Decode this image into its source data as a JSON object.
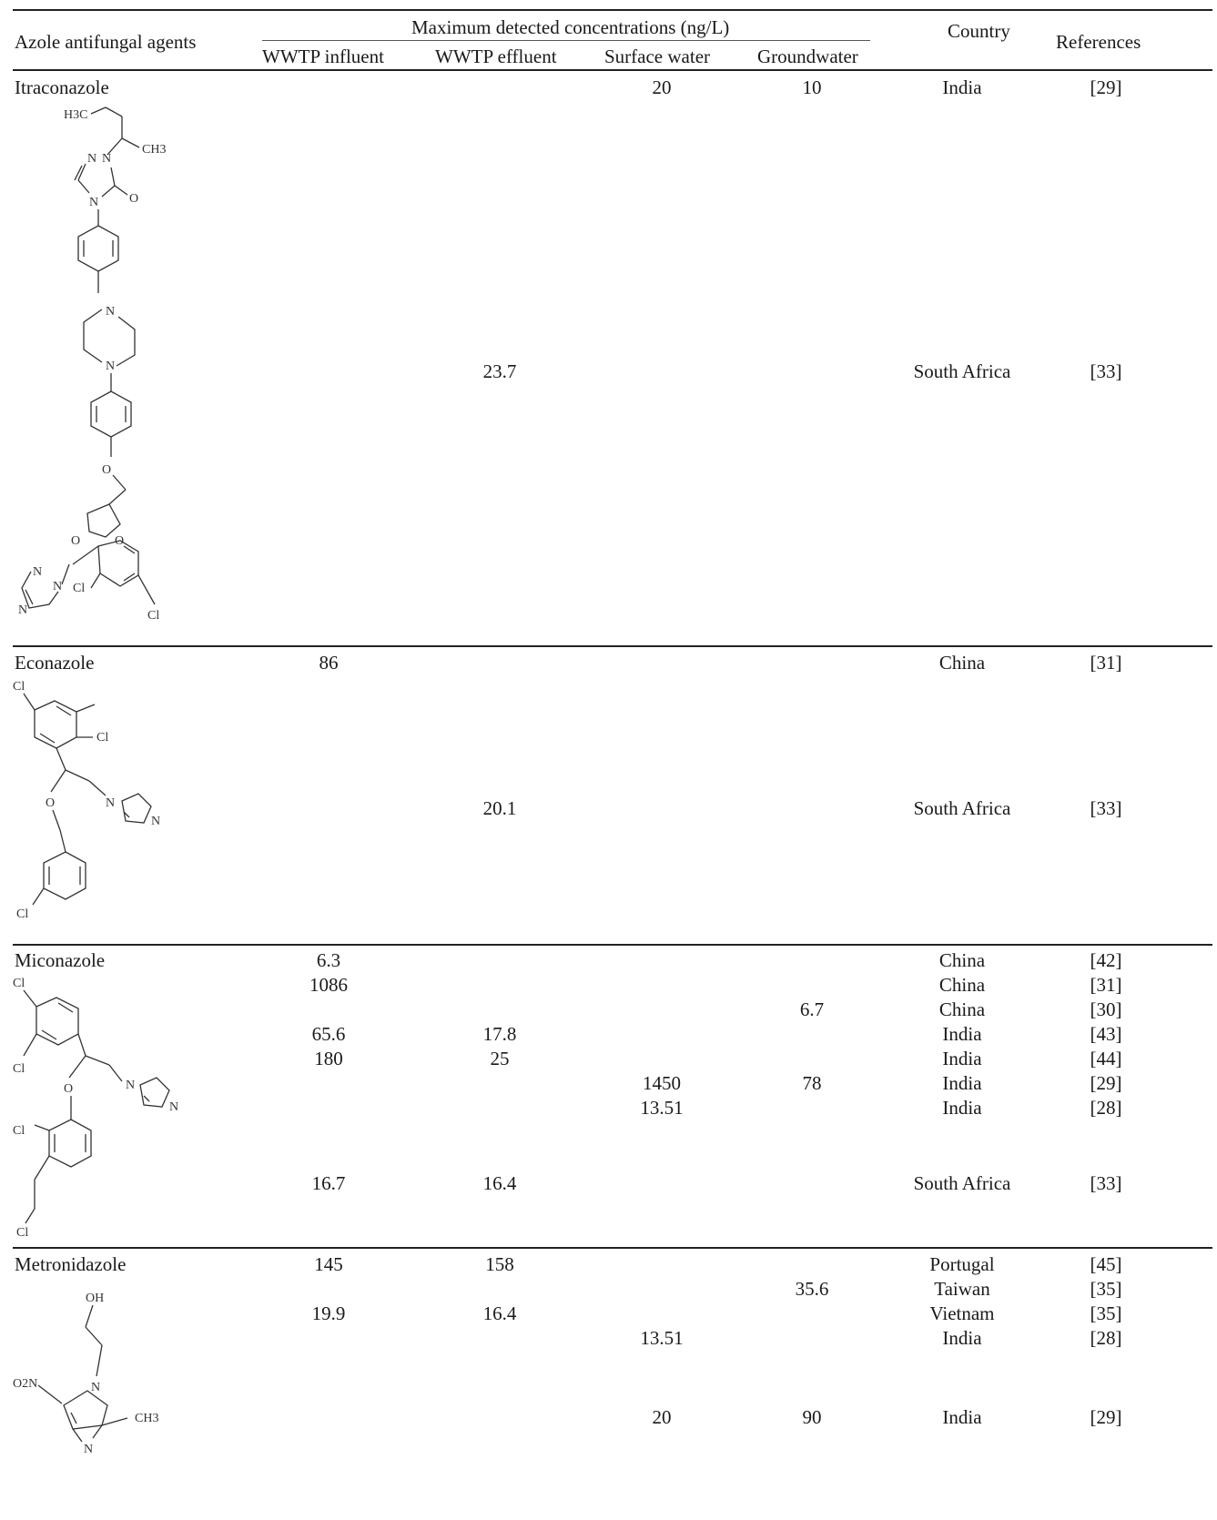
{
  "header": {
    "agent_col": "Azole antifungal agents",
    "group": "Maximum detected concentrations (ng/L)",
    "cols": [
      "WWTP influent",
      "WWTP effluent",
      "Surface water",
      "Groundwater"
    ],
    "country": "Country",
    "references": "References"
  },
  "agents": [
    {
      "name": "Itraconazole",
      "rows": [
        {
          "influent": "",
          "effluent": "",
          "surface": "20",
          "ground": "10",
          "country": "India",
          "ref": "[29]"
        },
        {
          "influent": "",
          "effluent": "23.7",
          "surface": "",
          "ground": "",
          "country": "South Africa",
          "ref": "[33]"
        }
      ]
    },
    {
      "name": "Econazole",
      "rows": [
        {
          "influent": "86",
          "effluent": "",
          "surface": "",
          "ground": "",
          "country": "China",
          "ref": "[31]"
        },
        {
          "influent": "",
          "effluent": "20.1",
          "surface": "",
          "ground": "",
          "country": "South Africa",
          "ref": "[33]"
        }
      ]
    },
    {
      "name": "Miconazole",
      "rows": [
        {
          "influent": "6.3",
          "effluent": "",
          "surface": "",
          "ground": "",
          "country": "China",
          "ref": "[42]"
        },
        {
          "influent": "1086",
          "effluent": "",
          "surface": "",
          "ground": "",
          "country": "China",
          "ref": "[31]"
        },
        {
          "influent": "",
          "effluent": "",
          "surface": "",
          "ground": "6.7",
          "country": "China",
          "ref": "[30]"
        },
        {
          "influent": "65.6",
          "effluent": "17.8",
          "surface": "",
          "ground": "",
          "country": "India",
          "ref": "[43]"
        },
        {
          "influent": "180",
          "effluent": "25",
          "surface": "",
          "ground": "",
          "country": "India",
          "ref": "[44]"
        },
        {
          "influent": "",
          "effluent": "",
          "surface": "1450",
          "ground": "78",
          "country": "India",
          "ref": "[29]"
        },
        {
          "influent": "",
          "effluent": "",
          "surface": "13.51",
          "ground": "",
          "country": "India",
          "ref": "[28]"
        },
        {
          "influent": "16.7",
          "effluent": "16.4",
          "surface": "",
          "ground": "",
          "country": "South Africa",
          "ref": "[33]"
        }
      ]
    },
    {
      "name": "Metronidazole",
      "rows": [
        {
          "influent": "145",
          "effluent": "158",
          "surface": "",
          "ground": "",
          "country": "Portugal",
          "ref": "[45]"
        },
        {
          "influent": "",
          "effluent": "",
          "surface": "",
          "ground": "35.6",
          "country": "Taiwan",
          "ref": "[35]"
        },
        {
          "influent": "19.9",
          "effluent": "16.4",
          "surface": "",
          "ground": "",
          "country": "Vietnam",
          "ref": "[35]"
        },
        {
          "influent": "",
          "effluent": "",
          "surface": "13.51",
          "ground": "",
          "country": "India",
          "ref": "[28]"
        },
        {
          "influent": "",
          "effluent": "",
          "surface": "20",
          "ground": "90",
          "country": "India",
          "ref": "[29]"
        }
      ]
    }
  ],
  "structure_labels": {
    "itraconazole": [
      "H3C",
      "CH3",
      "N",
      "N",
      "N",
      "O",
      "N",
      "N",
      "O",
      "O",
      "O",
      "N",
      "N",
      "N",
      "Cl",
      "Cl"
    ],
    "econazole": [
      "Cl",
      "Cl",
      "O",
      "N",
      "N",
      "Cl"
    ],
    "miconazole": [
      "Cl",
      "Cl",
      "O",
      "N",
      "N",
      "Cl",
      "Cl"
    ],
    "metronidazole": [
      "OH",
      "O2N",
      "N",
      "CH3",
      "N"
    ]
  }
}
